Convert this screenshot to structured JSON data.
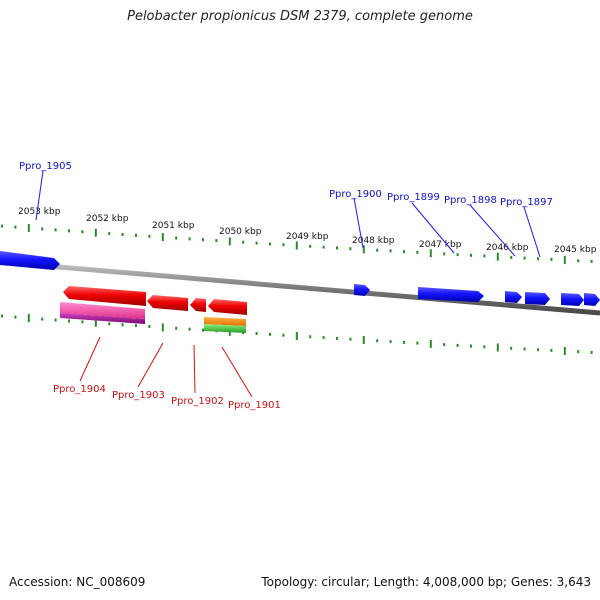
{
  "title": "Pelobacter propionicus DSM 2379, complete genome",
  "footer": {
    "accession": "Accession: NC_008609",
    "topology": "Topology: circular; Length: 4,008,000 bp; Genes: 3,643"
  },
  "colors": {
    "forward_gene": "#1a1aff",
    "reverse_gene": "#ee0000",
    "scale_tick": "#2a8a2a",
    "backbone": "#8c8c8c",
    "forward_label": "#1010c8",
    "reverse_label": "#cc1010"
  },
  "scale_labels": [
    "2053 kbp",
    "2052 kbp",
    "2051 kbp",
    "2050 kbp",
    "2049 kbp",
    "2048 kbp",
    "2047 kbp",
    "2046 kbp",
    "2045 kbp"
  ],
  "forward_labels": [
    "Ppro_1905",
    "Ppro_1900",
    "Ppro_1899",
    "Ppro_1898",
    "Ppro_1897"
  ],
  "reverse_labels": [
    "Ppro_1904",
    "Ppro_1903",
    "Ppro_1902",
    "Ppro_1901"
  ]
}
